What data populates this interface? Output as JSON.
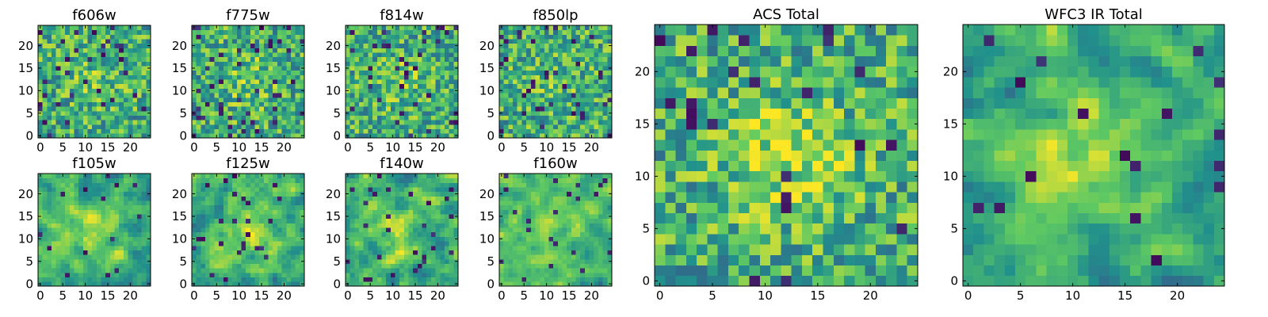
{
  "chart_data": {
    "type": "heatmap",
    "colormap": "viridis",
    "colormap_stops": [
      "#440154",
      "#3b528b",
      "#21918c",
      "#5ec962",
      "#fde725"
    ],
    "note": "Pixel intensities are not labeled; heatmap values are approximate normalized levels (0-1) estimated from the image.",
    "panels": [
      {
        "title": "f606w",
        "size": 25,
        "xticks": [
          "0",
          "5",
          "10",
          "15",
          "20"
        ],
        "yticks": [
          "0",
          "5",
          "10",
          "15",
          "20"
        ],
        "seed": 11,
        "smooth": 0,
        "center_boost": 0.1,
        "dark_fraction": 0.06
      },
      {
        "title": "f775w",
        "size": 25,
        "xticks": [
          "0",
          "5",
          "10",
          "15",
          "20"
        ],
        "yticks": [
          "0",
          "5",
          "10",
          "15",
          "20"
        ],
        "seed": 23,
        "smooth": 0,
        "center_boost": 0.12,
        "dark_fraction": 0.06
      },
      {
        "title": "f814w",
        "size": 25,
        "xticks": [
          "0",
          "5",
          "10",
          "15",
          "20"
        ],
        "yticks": [
          "0",
          "5",
          "10",
          "15",
          "20"
        ],
        "seed": 37,
        "smooth": 0,
        "center_boost": 0.1,
        "dark_fraction": 0.06
      },
      {
        "title": "f850lp",
        "size": 25,
        "xticks": [
          "0",
          "5",
          "10",
          "15",
          "20"
        ],
        "yticks": [
          "0",
          "5",
          "10",
          "15",
          "20"
        ],
        "seed": 41,
        "smooth": 0,
        "center_boost": 0.08,
        "dark_fraction": 0.07
      },
      {
        "title": "f105w",
        "size": 25,
        "xticks": [
          "0",
          "5",
          "10",
          "15",
          "20"
        ],
        "yticks": [
          "0",
          "5",
          "10",
          "15",
          "20"
        ],
        "seed": 53,
        "smooth": 1,
        "center_boost": 0.2,
        "dark_fraction": 0.03
      },
      {
        "title": "f125w",
        "size": 25,
        "xticks": [
          "0",
          "5",
          "10",
          "15",
          "20"
        ],
        "yticks": [
          "0",
          "5",
          "10",
          "15",
          "20"
        ],
        "seed": 67,
        "smooth": 1,
        "center_boost": 0.2,
        "dark_fraction": 0.03
      },
      {
        "title": "f140w",
        "size": 25,
        "xticks": [
          "0",
          "5",
          "10",
          "15",
          "20"
        ],
        "yticks": [
          "0",
          "5",
          "10",
          "15",
          "20"
        ],
        "seed": 71,
        "smooth": 1,
        "center_boost": 0.18,
        "dark_fraction": 0.04
      },
      {
        "title": "f160w",
        "size": 25,
        "xticks": [
          "0",
          "5",
          "10",
          "15",
          "20"
        ],
        "yticks": [
          "0",
          "5",
          "10",
          "15",
          "20"
        ],
        "seed": 83,
        "smooth": 1,
        "center_boost": 0.18,
        "dark_fraction": 0.04
      },
      {
        "title": "ACS Total",
        "size": 25,
        "xticks": [
          "0",
          "5",
          "10",
          "15",
          "20"
        ],
        "yticks": [
          "0",
          "5",
          "10",
          "15",
          "20"
        ],
        "seed": 97,
        "smooth": 0,
        "center_boost": 0.25,
        "dark_fraction": 0.04
      },
      {
        "title": "WFC3 IR Total",
        "size": 25,
        "xticks": [
          "0",
          "5",
          "10",
          "15",
          "20"
        ],
        "yticks": [
          "0",
          "5",
          "10",
          "15",
          "20"
        ],
        "seed": 101,
        "smooth": 1,
        "center_boost": 0.3,
        "dark_fraction": 0.03
      }
    ]
  }
}
